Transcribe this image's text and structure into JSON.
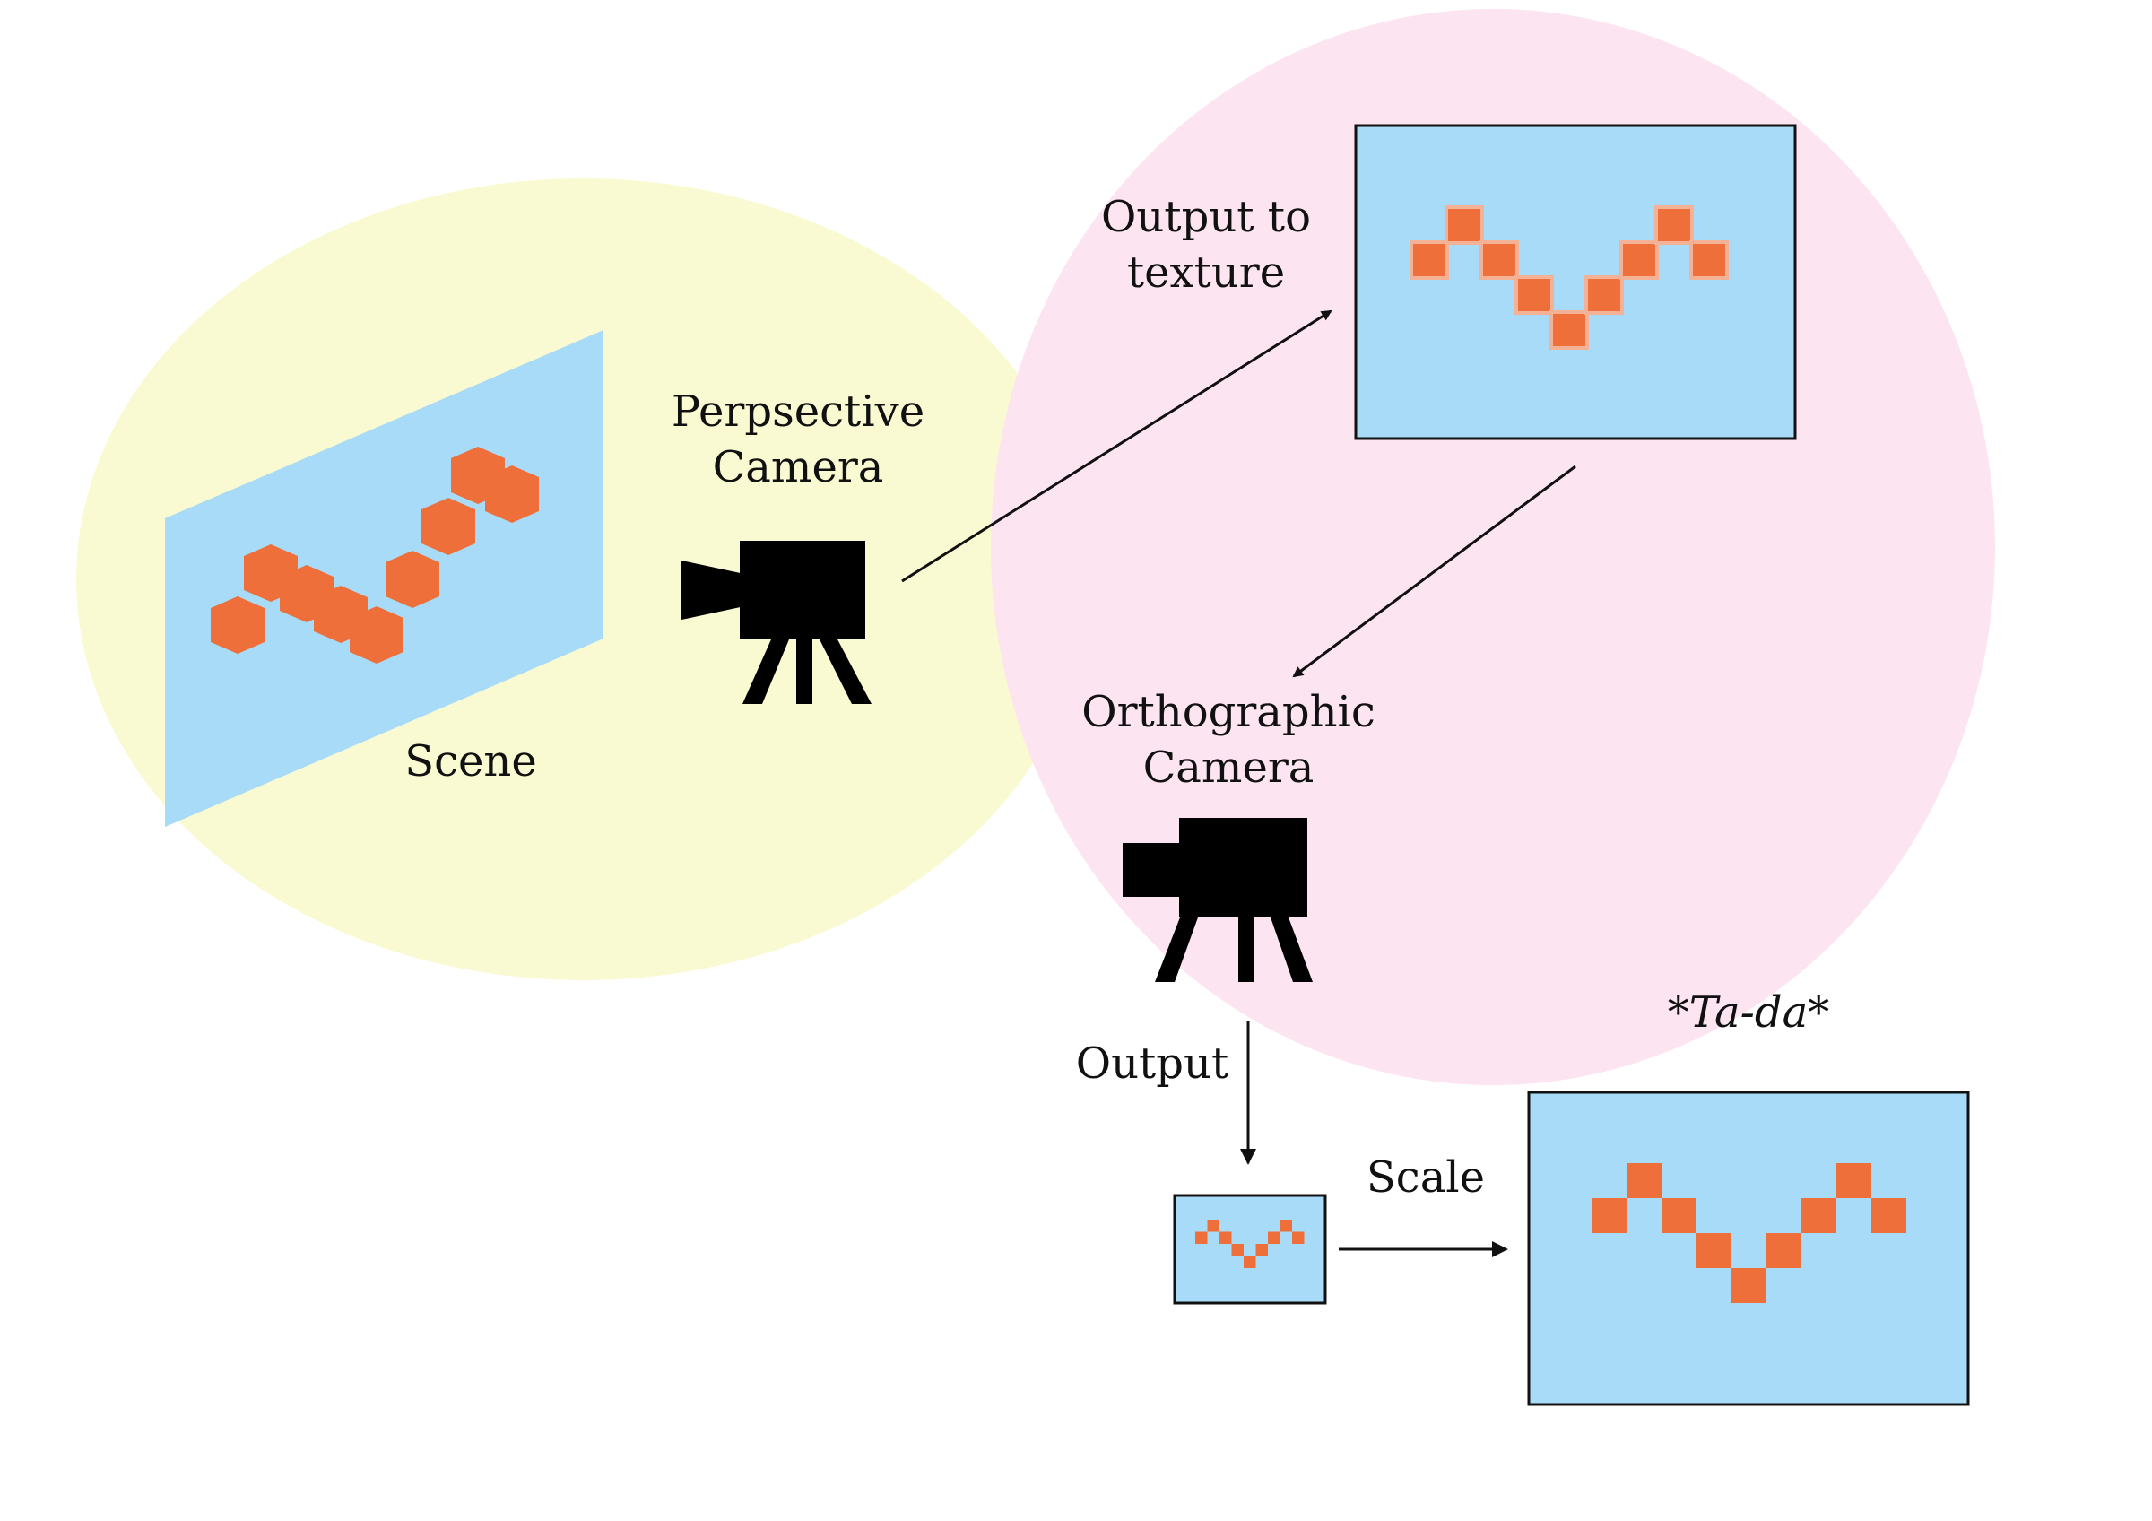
{
  "colors": {
    "background": "#ffffff",
    "scene_zone": "#fafad2",
    "render_zone": "#fce4f0",
    "screen": "#a7dbf7",
    "pixel": "#ee6f3a",
    "pixel_glow": "#f3b295",
    "camera": "#000000",
    "arrow": "#111111"
  },
  "icons": {
    "perspective_camera": "movie-camera-icon",
    "orthographic_camera": "movie-camera-icon"
  },
  "labels": {
    "scene": "Scene",
    "perspective_camera_line1": "Perpsective",
    "perspective_camera_line2": "Camera",
    "output_to_texture_line1": "Output to",
    "output_to_texture_line2": "texture",
    "orthographic_camera_line1": "Orthographic",
    "orthographic_camera_line2": "Camera",
    "output": "Output",
    "scale": "Scale",
    "tada": "*Ta-da*"
  }
}
